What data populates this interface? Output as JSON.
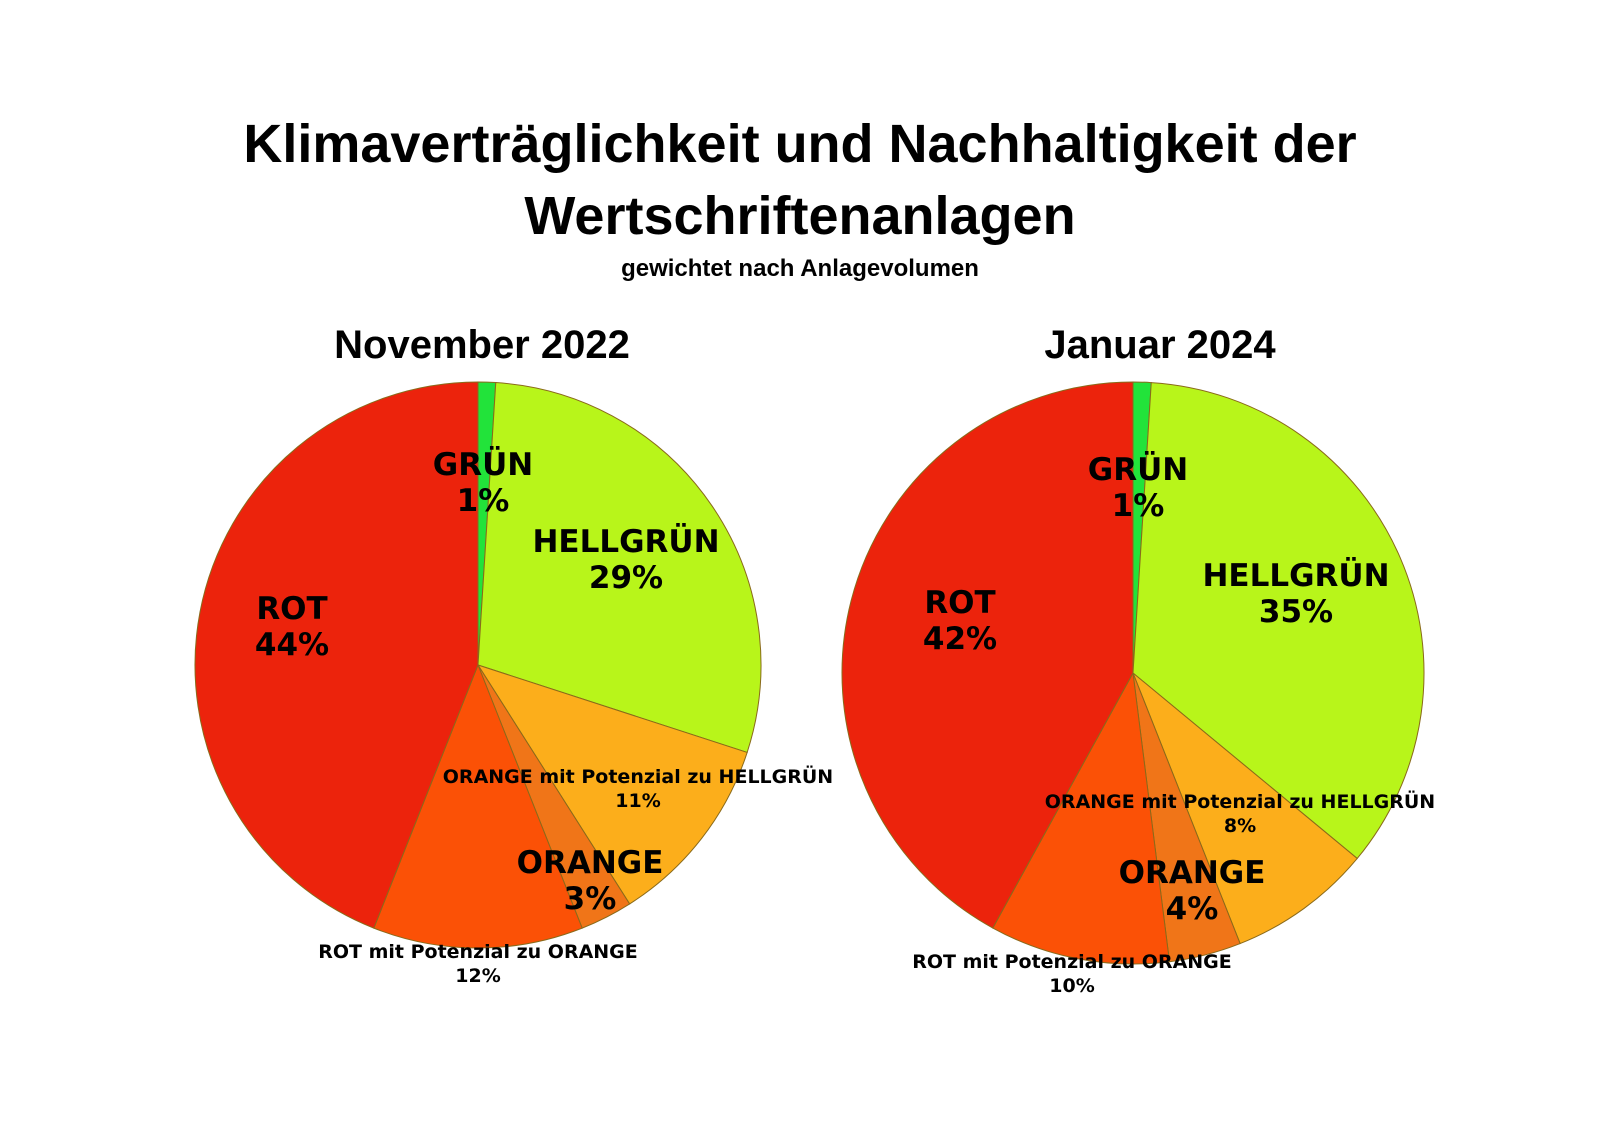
{
  "title_line1": "Klimaverträglichkeit und Nachhaltigkeit der",
  "title_line2": "Wertschriftenanlagen",
  "subtitle": "gewichtet nach Anlagevolumen",
  "colors": {
    "gruen": "#22e33a",
    "hellgruen": "#b8f51a",
    "orange_potenzial": "#fcae1b",
    "orange": "#f07518",
    "rot_potenzial": "#fb5106",
    "rot": "#ec230c"
  },
  "chart_data": [
    {
      "type": "pie",
      "title": "November 2022",
      "slices": [
        {
          "key": "gruen",
          "label": "GRÜN",
          "value": 1,
          "value_label": "1%"
        },
        {
          "key": "hellgruen",
          "label": "HELLGRÜN",
          "value": 29,
          "value_label": "29%"
        },
        {
          "key": "orange_potenzial",
          "label": "ORANGE mit Potenzial zu HELLGRÜN",
          "value": 11,
          "value_label": "11%"
        },
        {
          "key": "orange",
          "label": "ORANGE",
          "value": 3,
          "value_label": "3%"
        },
        {
          "key": "rot_potenzial",
          "label": "ROT mit Potenzial zu ORANGE",
          "value": 12,
          "value_label": "12%"
        },
        {
          "key": "rot",
          "label": "ROT",
          "value": 44,
          "value_label": "44%"
        }
      ]
    },
    {
      "type": "pie",
      "title": "Januar 2024",
      "slices": [
        {
          "key": "gruen",
          "label": "GRÜN",
          "value": 1,
          "value_label": "1%"
        },
        {
          "key": "hellgruen",
          "label": "HELLGRÜN",
          "value": 35,
          "value_label": "35%"
        },
        {
          "key": "orange_potenzial",
          "label": "ORANGE mit Potenzial zu HELLGRÜN",
          "value": 8,
          "value_label": "8%"
        },
        {
          "key": "orange",
          "label": "ORANGE",
          "value": 4,
          "value_label": "4%"
        },
        {
          "key": "rot_potenzial",
          "label": "ROT mit Potenzial zu ORANGE",
          "value": 10,
          "value_label": "10%"
        },
        {
          "key": "rot",
          "label": "ROT",
          "value": 42,
          "value_label": "42%"
        }
      ]
    }
  ]
}
